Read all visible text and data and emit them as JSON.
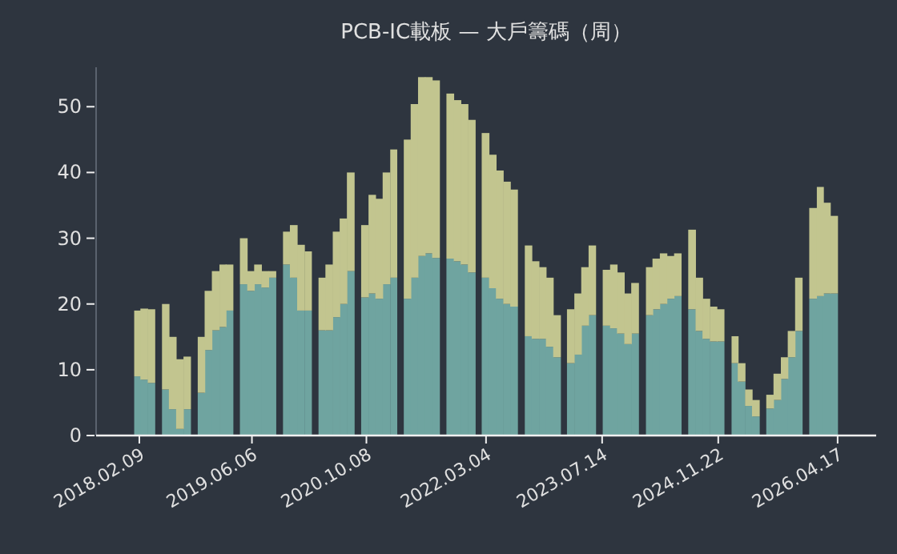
{
  "chart_data": {
    "type": "bar",
    "stacked": true,
    "title": "PCB-IC載板 — 大戶籌碼（周）",
    "x": [
      "2018-02",
      "2018-03",
      "2018-04",
      "2018-05",
      "2018-06",
      "2018-07",
      "2018-08",
      "2018-09",
      "2018-10",
      "2018-11",
      "2018-12",
      "2019-01",
      "2019-02",
      "2019-03",
      "2019-04",
      "2019-05",
      "2019-06",
      "2019-07",
      "2019-08",
      "2019-09",
      "2019-10",
      "2019-11",
      "2019-12",
      "2020-01",
      "2020-02",
      "2020-03",
      "2020-04",
      "2020-05",
      "2020-06",
      "2020-07",
      "2020-08",
      "2020-09",
      "2020-10",
      "2020-11",
      "2020-12",
      "2021-01",
      "2021-02",
      "2021-03",
      "2021-04",
      "2021-05",
      "2021-06",
      "2021-07",
      "2021-08",
      "2021-09",
      "2021-10",
      "2021-11",
      "2021-12",
      "2022-01",
      "2022-02",
      "2022-03",
      "2022-04",
      "2022-05",
      "2022-06",
      "2022-07",
      "2022-08",
      "2022-09",
      "2022-10",
      "2022-11",
      "2022-12",
      "2023-01",
      "2023-02",
      "2023-03",
      "2023-04",
      "2023-05",
      "2023-06",
      "2023-07",
      "2023-08",
      "2023-09",
      "2023-10",
      "2023-11",
      "2023-12",
      "2024-01",
      "2024-02",
      "2024-03",
      "2024-04",
      "2024-05",
      "2024-06",
      "2024-07",
      "2024-08",
      "2024-09",
      "2024-10",
      "2024-11",
      "2024-12",
      "2025-01",
      "2025-02",
      "2025-03",
      "2025-04",
      "2025-05",
      "2025-06",
      "2025-07",
      "2025-08",
      "2025-09",
      "2025-10",
      "2025-11",
      "2025-12",
      "2026-01",
      "2026-02",
      "2026-03",
      "2026-04"
    ],
    "series": [
      {
        "color": "#6fa4a0",
        "values": [
          9,
          8.5,
          8,
          null,
          7,
          4,
          1,
          4,
          null,
          6.5,
          13,
          16,
          16.5,
          19,
          null,
          23,
          22,
          23,
          22.5,
          24,
          null,
          26,
          24,
          19,
          19,
          null,
          16,
          16,
          18,
          20,
          25,
          null,
          21,
          21.6,
          20.8,
          23,
          24,
          null,
          20.8,
          24,
          27.3,
          27.7,
          27,
          null,
          26.9,
          26.5,
          26,
          24.8,
          null,
          24,
          22.4,
          20.8,
          20,
          19.6,
          null,
          15.1,
          14.7,
          14.7,
          13.5,
          11.9,
          null,
          11,
          12.3,
          16.7,
          18.3,
          null,
          16.7,
          16.3,
          15.5,
          13.9,
          15.5,
          null,
          18.3,
          19.2,
          20,
          20.8,
          21.2,
          null,
          19.2,
          15.9,
          14.7,
          14.3,
          14.3,
          null,
          11,
          8.2,
          4.5,
          2.9,
          null,
          4.1,
          5.4,
          8.6,
          11.9,
          15.9,
          null,
          20.8,
          21.2,
          21.6,
          21.6
        ]
      },
      {
        "color": "#c2c58f",
        "values": [
          10,
          10.8,
          11.2,
          null,
          13,
          11,
          10.6,
          8,
          null,
          8.5,
          9,
          9,
          9.5,
          7,
          null,
          7,
          3,
          3,
          2.5,
          1,
          null,
          5,
          8,
          10,
          9,
          null,
          8,
          10,
          13,
          13,
          15,
          null,
          11,
          15,
          15.2,
          17,
          19.5,
          null,
          24.2,
          26.4,
          27.2,
          26.8,
          27,
          null,
          25.1,
          24.5,
          24.4,
          23.2,
          null,
          22,
          20.3,
          19.5,
          18.6,
          17.8,
          null,
          13.8,
          11.8,
          10.9,
          10.5,
          6.4,
          null,
          8.2,
          9.3,
          8.9,
          10.6,
          null,
          8.5,
          9.7,
          9.3,
          7.7,
          7.7,
          null,
          7.3,
          7.7,
          7.7,
          6.5,
          6.5,
          null,
          12.1,
          8.1,
          6.1,
          5.3,
          4.9,
          null,
          4.1,
          2.8,
          2.5,
          2.5,
          null,
          2.1,
          4,
          3.3,
          4,
          8.1,
          null,
          13.8,
          16.6,
          13.8,
          11.8
        ]
      }
    ],
    "xlim": [
      "2017-08-08",
      "2026-09-29"
    ],
    "xticks": [
      {
        "value": "2018-02-09",
        "label": "2018.02.09"
      },
      {
        "value": "2019-06-06",
        "label": "2019.06.06"
      },
      {
        "value": "2020-10-08",
        "label": "2020.10.08"
      },
      {
        "value": "2022-03-04",
        "label": "2022.03.04"
      },
      {
        "value": "2023-07-14",
        "label": "2023.07.14"
      },
      {
        "value": "2024-11-22",
        "label": "2024.11.22"
      },
      {
        "value": "2026-04-17",
        "label": "2026.04.17"
      }
    ],
    "ylim": [
      0,
      56
    ],
    "yticks": [
      0,
      10,
      20,
      30,
      40,
      50
    ]
  }
}
